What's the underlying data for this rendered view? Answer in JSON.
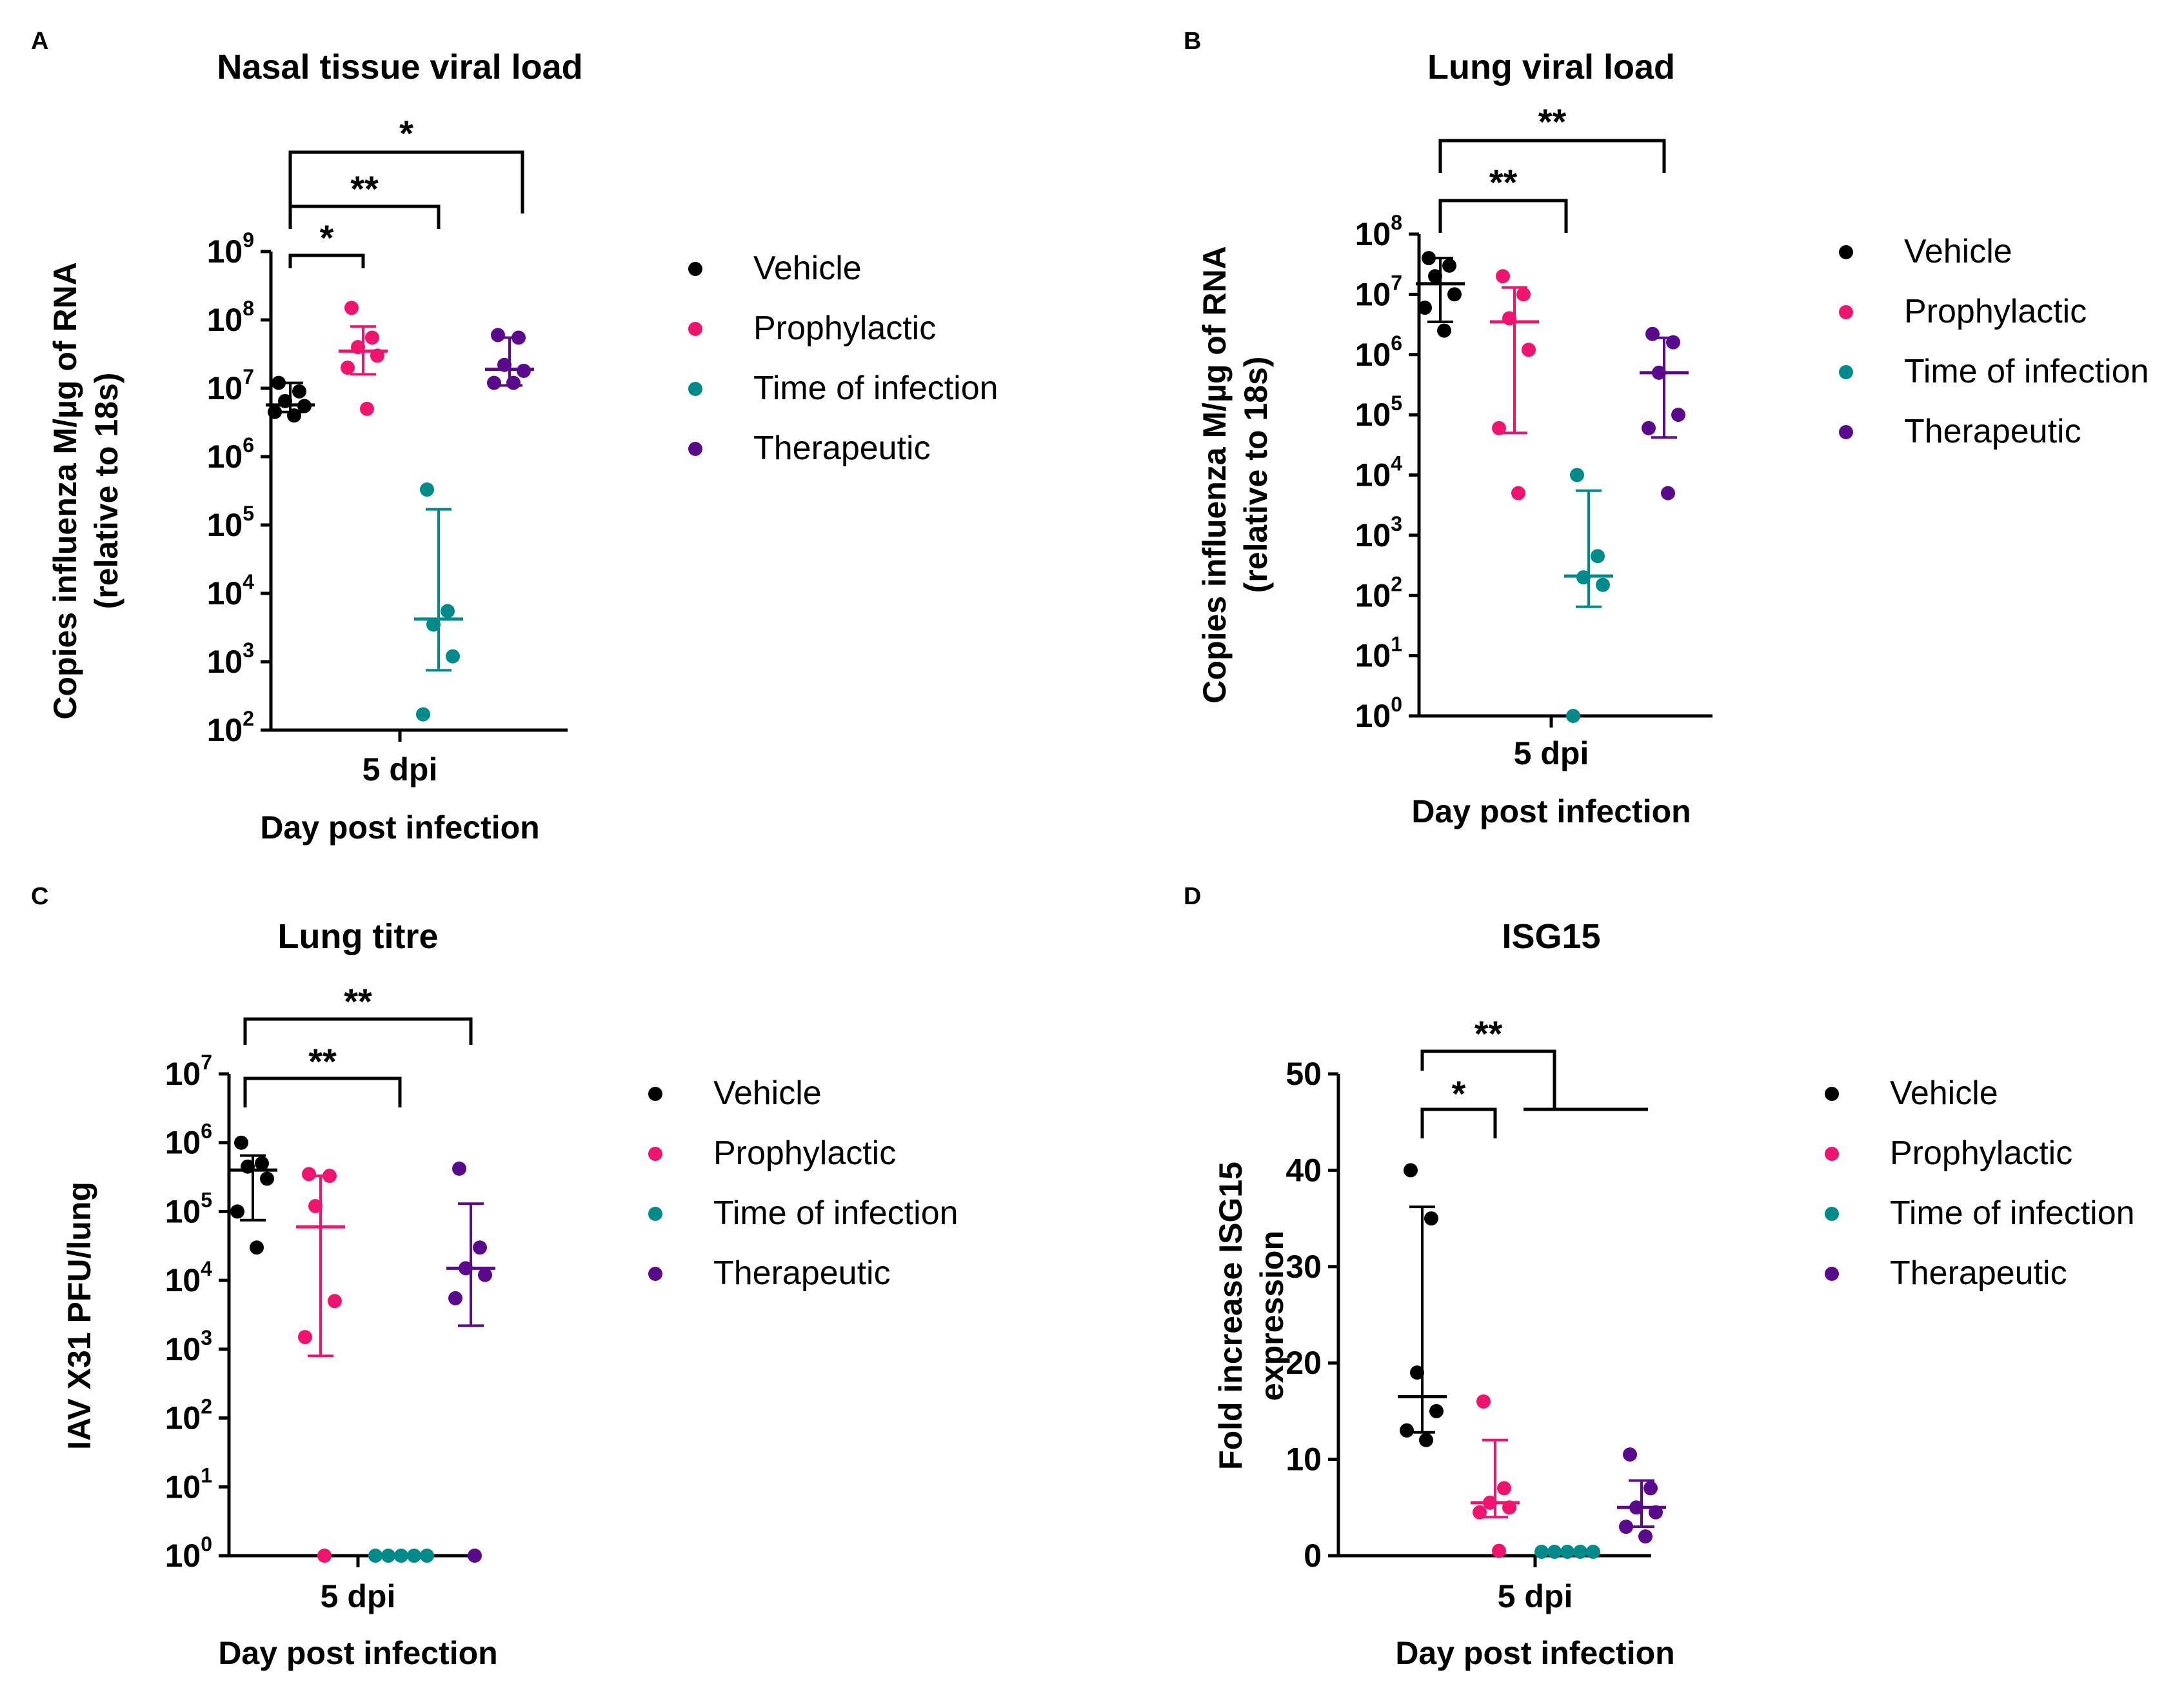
{
  "chart_data": [
    {
      "panel": "A",
      "type": "scatter",
      "title": "Nasal tissue viral load",
      "ylabel": [
        "Copies influenza M/µg of RNA",
        "(relative to 18s)"
      ],
      "xlabel": "Day post infection",
      "xtick": "5 dpi",
      "yscale": "log",
      "ylim": [
        100,
        1000000000
      ],
      "yticks": [
        {
          "base": "10",
          "exp": "2"
        },
        {
          "base": "10",
          "exp": "3"
        },
        {
          "base": "10",
          "exp": "4"
        },
        {
          "base": "10",
          "exp": "5"
        },
        {
          "base": "10",
          "exp": "6"
        },
        {
          "base": "10",
          "exp": "7"
        },
        {
          "base": "10",
          "exp": "8"
        },
        {
          "base": "10",
          "exp": "9"
        }
      ],
      "series": [
        {
          "name": "Vehicle",
          "color": "#000000",
          "points": [
            12000000,
            9000000,
            6500000,
            5500000,
            4500000,
            4000000
          ],
          "median": 5700000,
          "err_low": 4500000,
          "err_high": 12000000
        },
        {
          "name": "Prophylactic",
          "color": "#f0146e",
          "points": [
            150000000,
            55000000,
            40000000,
            30000000,
            20000000,
            5000000
          ],
          "median": 35000000,
          "err_low": 16000000,
          "err_high": 80000000
        },
        {
          "name": "Time of infection",
          "color": "#008b8b",
          "points": [
            330000,
            5500,
            3500,
            1200,
            170
          ],
          "median": 4200,
          "err_low": 750,
          "err_high": 170000
        },
        {
          "name": "Therapeutic",
          "color": "#5a0a8c",
          "points": [
            60000000,
            55000000,
            22000000,
            18000000,
            12000000,
            12000000
          ],
          "median": 19000000,
          "err_low": 11000000,
          "err_high": 55000000
        }
      ],
      "significance": [
        {
          "groups": [
            "Vehicle",
            "Prophylactic"
          ],
          "label": "*"
        },
        {
          "groups": [
            "Vehicle",
            "Time of infection"
          ],
          "label": "**"
        },
        {
          "groups": [
            "Vehicle",
            "Therapeutic"
          ],
          "label": "*"
        }
      ]
    },
    {
      "panel": "B",
      "type": "scatter",
      "title": "Lung viral load",
      "ylabel": [
        "Copies influenza M/µg of RNA",
        "(relative to 18s)"
      ],
      "xlabel": "Day post infection",
      "xtick": "5 dpi",
      "yscale": "log",
      "ylim": [
        1,
        100000000
      ],
      "yticks": [
        {
          "base": "10",
          "exp": "0"
        },
        {
          "base": "10",
          "exp": "1"
        },
        {
          "base": "10",
          "exp": "2"
        },
        {
          "base": "10",
          "exp": "3"
        },
        {
          "base": "10",
          "exp": "4"
        },
        {
          "base": "10",
          "exp": "5"
        },
        {
          "base": "10",
          "exp": "6"
        },
        {
          "base": "10",
          "exp": "7"
        },
        {
          "base": "10",
          "exp": "8"
        }
      ],
      "series": [
        {
          "name": "Vehicle",
          "color": "#000000",
          "points": [
            40000000,
            30000000,
            20000000,
            10000000,
            6000000,
            2500000
          ],
          "median": 15000000,
          "err_low": 3500000,
          "err_high": 40000000
        },
        {
          "name": "Prophylactic",
          "color": "#f0146e",
          "points": [
            20000000,
            10000000,
            4000000,
            1200000,
            60000,
            5000
          ],
          "median": 3500000,
          "err_low": 50000,
          "err_high": 13000000
        },
        {
          "name": "Time of infection",
          "color": "#008b8b",
          "points": [
            10000,
            450,
            200,
            150,
            1
          ],
          "median": 210,
          "err_low": 65,
          "err_high": 5500
        },
        {
          "name": "Therapeutic",
          "color": "#5a0a8c",
          "points": [
            2200000,
            1600000,
            500000,
            100000,
            60000,
            5000
          ],
          "median": 500000,
          "err_low": 42000,
          "err_high": 1900000
        }
      ],
      "significance": [
        {
          "groups": [
            "Vehicle",
            "Time of infection"
          ],
          "label": "**"
        },
        {
          "groups": [
            "Vehicle",
            "Therapeutic"
          ],
          "label": "**"
        }
      ]
    },
    {
      "panel": "C",
      "type": "scatter",
      "title": "Lung titre",
      "ylabel": [
        "IAV X31 PFU/lung"
      ],
      "xlabel": "Day post infection",
      "xtick": "5 dpi",
      "yscale": "log",
      "ylim": [
        1,
        10000000
      ],
      "yticks": [
        {
          "base": "10",
          "exp": "0"
        },
        {
          "base": "10",
          "exp": "1"
        },
        {
          "base": "10",
          "exp": "2"
        },
        {
          "base": "10",
          "exp": "3"
        },
        {
          "base": "10",
          "exp": "4"
        },
        {
          "base": "10",
          "exp": "5"
        },
        {
          "base": "10",
          "exp": "6"
        },
        {
          "base": "10",
          "exp": "7"
        }
      ],
      "series": [
        {
          "name": "Vehicle",
          "color": "#000000",
          "points": [
            1000000,
            500000,
            450000,
            300000,
            100000,
            30000
          ],
          "median": 400000,
          "err_low": 75000,
          "err_high": 650000
        },
        {
          "name": "Prophylactic",
          "color": "#f0146e",
          "points": [
            350000,
            330000,
            120000,
            5000,
            1500,
            1
          ],
          "median": 60000,
          "err_low": 800,
          "err_high": 330000
        },
        {
          "name": "Time of infection",
          "color": "#008b8b",
          "points": [
            1,
            1,
            1,
            1,
            1
          ],
          "median": 1,
          "err_low": 1,
          "err_high": 1
        },
        {
          "name": "Therapeutic",
          "color": "#5a0a8c",
          "points": [
            420000,
            30000,
            15000,
            12000,
            5500,
            1
          ],
          "median": 15000,
          "err_low": 2200,
          "err_high": 130000
        }
      ],
      "significance": [
        {
          "groups": [
            "Vehicle",
            "Time of infection"
          ],
          "label": "**"
        },
        {
          "groups": [
            "Vehicle",
            "Therapeutic"
          ],
          "label": "**"
        }
      ]
    },
    {
      "panel": "D",
      "type": "scatter",
      "title": "ISG15",
      "ylabel": [
        "Fold increase ISG15",
        "expression"
      ],
      "xlabel": "Day post infection",
      "xtick": "5 dpi",
      "yscale": "linear",
      "ylim": [
        0,
        50
      ],
      "yticks": [
        {
          "base": "0",
          "exp": ""
        },
        {
          "base": "10",
          "exp": ""
        },
        {
          "base": "20",
          "exp": ""
        },
        {
          "base": "30",
          "exp": ""
        },
        {
          "base": "40",
          "exp": ""
        },
        {
          "base": "50",
          "exp": ""
        }
      ],
      "series": [
        {
          "name": "Vehicle",
          "color": "#000000",
          "points": [
            40,
            35,
            19,
            15,
            13,
            12
          ],
          "median": 16.5,
          "err_low": 12.8,
          "err_high": 36.2
        },
        {
          "name": "Prophylactic",
          "color": "#f0146e",
          "points": [
            16,
            7,
            5.5,
            5,
            4.5,
            0.5
          ],
          "median": 5.5,
          "err_low": 4,
          "err_high": 12
        },
        {
          "name": "Time of infection",
          "color": "#008b8b",
          "points": [
            0.4,
            0.4,
            0.4,
            0.4,
            0.4
          ],
          "median": 0.4,
          "err_low": 0.3,
          "err_high": 0.5
        },
        {
          "name": "Therapeutic",
          "color": "#5a0a8c",
          "points": [
            10.5,
            7,
            5,
            4.5,
            3,
            2
          ],
          "median": 5,
          "err_low": 3,
          "err_high": 7.8
        }
      ],
      "significance": [
        {
          "groups": [
            "Vehicle",
            "Prophylactic"
          ],
          "label": "*"
        },
        {
          "groups": [
            "Vehicle",
            "Time of infection & Therapeutic"
          ],
          "label": "**"
        }
      ]
    }
  ]
}
